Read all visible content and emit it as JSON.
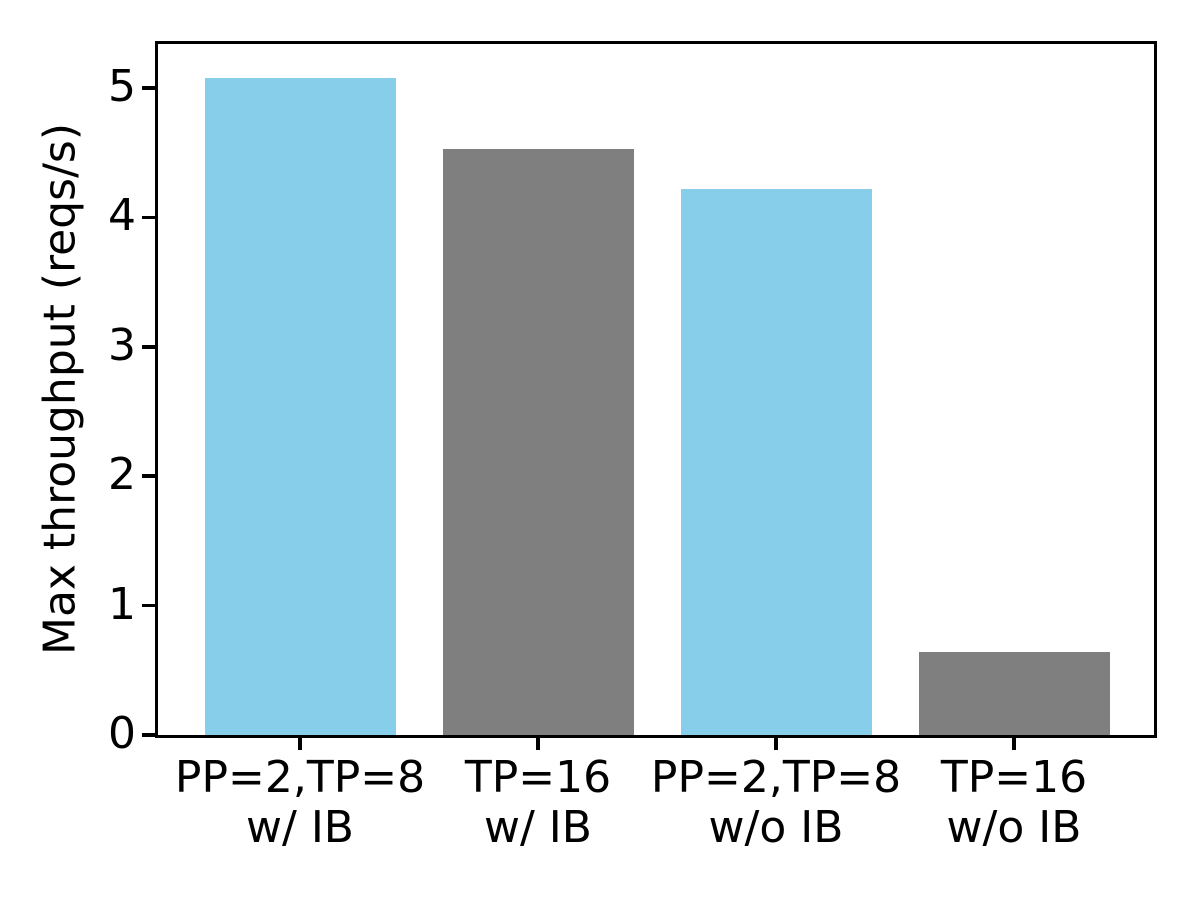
{
  "figure": {
    "background_color": "#ffffff",
    "spine_color": "#000000",
    "text_color": "#000000"
  },
  "chart_data": {
    "type": "bar",
    "title": "",
    "xlabel": "",
    "ylabel": "Max throughput (reqs/s)",
    "categories": [
      "PP=2,TP=8 w/ IB",
      "TP=16 w/ IB",
      "PP=2,TP=8 w/o IB",
      "TP=16 w/o IB"
    ],
    "category_lines": [
      [
        "PP=2,TP=8",
        "w/ IB"
      ],
      [
        "TP=16",
        "w/ IB"
      ],
      [
        "PP=2,TP=8",
        "w/o IB"
      ],
      [
        "TP=16",
        "w/o IB"
      ]
    ],
    "values": [
      5.08,
      4.53,
      4.22,
      0.64
    ],
    "bar_colors": [
      "#87CEEB",
      "#7F7F7F",
      "#87CEEB",
      "#7F7F7F"
    ],
    "y_ticks": [
      0,
      1,
      2,
      3,
      4,
      5
    ],
    "ylim": [
      0,
      5.34
    ],
    "grid": false,
    "legend": null
  }
}
